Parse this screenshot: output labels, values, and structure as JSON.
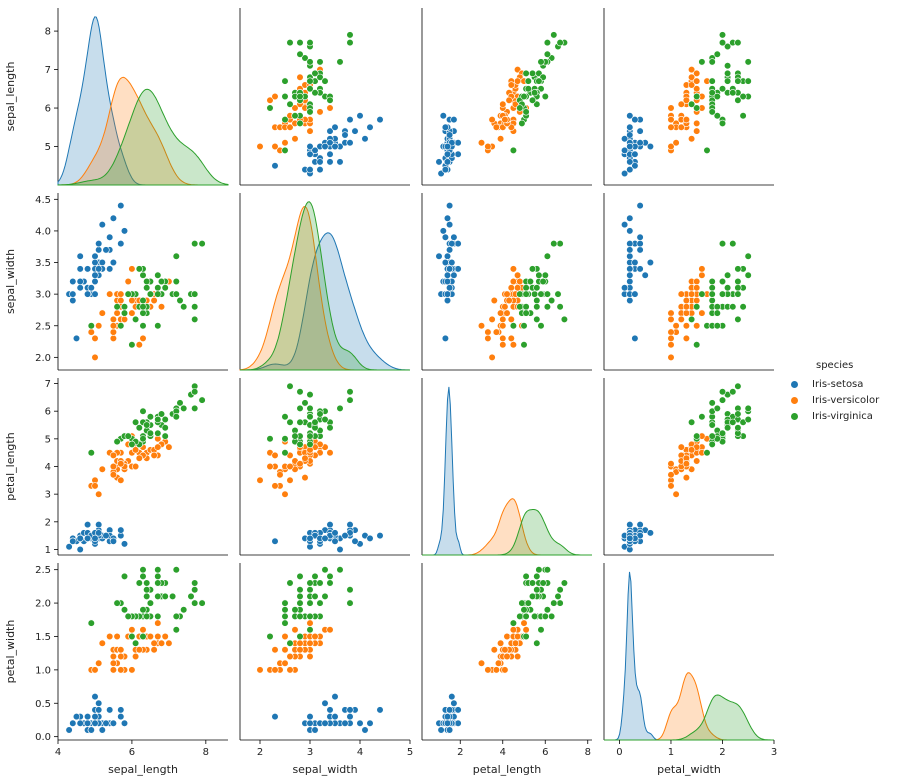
{
  "chart_data": {
    "type": "scatter",
    "title": "",
    "kind": "pairplot",
    "variables": [
      "sepal_length",
      "sepal_width",
      "petal_length",
      "petal_width"
    ],
    "axes": {
      "sepal_length": {
        "label": "sepal_length",
        "range": [
          4.0,
          8.6
        ],
        "ticks": [
          5,
          6,
          7,
          8
        ],
        "bottom_ticks": [
          4,
          6,
          8
        ]
      },
      "sepal_width": {
        "label": "sepal_width",
        "range": [
          1.8,
          4.6
        ],
        "ticks": [
          2.0,
          2.5,
          3.0,
          3.5,
          4.0,
          4.5
        ],
        "bottom_ticks": [
          2,
          3,
          4,
          5
        ],
        "bottom_range": [
          1.6,
          5.0
        ]
      },
      "petal_length": {
        "label": "petal_length",
        "range": [
          0.8,
          7.2
        ],
        "ticks": [
          1,
          2,
          3,
          4,
          5,
          6,
          7
        ],
        "bottom_ticks": [
          2,
          4,
          6,
          8
        ],
        "bottom_range": [
          0.2,
          8.2
        ]
      },
      "petal_width": {
        "label": "petal_width",
        "range": [
          -0.05,
          2.6
        ],
        "ticks": [
          0.0,
          0.5,
          1.0,
          1.5,
          2.0,
          2.5
        ],
        "bottom_ticks": [
          0,
          1,
          2,
          3
        ],
        "bottom_range": [
          -0.3,
          3.0
        ]
      }
    },
    "tick_labels": {
      "sepal_length": [
        "5",
        "6",
        "7",
        "8"
      ],
      "sepal_width": [
        "2.0",
        "2.5",
        "3.0",
        "3.5",
        "4.0",
        "4.5"
      ],
      "petal_length": [
        "1",
        "2",
        "3",
        "4",
        "5",
        "6",
        "7"
      ],
      "petal_width": [
        "0.0",
        "0.5",
        "1.0",
        "1.5",
        "2.0",
        "2.5"
      ],
      "bottom_sepal_length": [
        "4",
        "6",
        "8"
      ],
      "bottom_sepal_width": [
        "2",
        "3",
        "4",
        "5"
      ],
      "bottom_petal_length": [
        "2",
        "4",
        "6",
        "8"
      ],
      "bottom_petal_width": [
        "0",
        "1",
        "2",
        "3"
      ]
    },
    "legend": {
      "title": "species",
      "position": "right",
      "entries": [
        {
          "name": "Iris-setosa",
          "color": "#1f77b4"
        },
        {
          "name": "Iris-versicolor",
          "color": "#ff7f0e"
        },
        {
          "name": "Iris-virginica",
          "color": "#2ca02c"
        }
      ]
    },
    "series": [
      {
        "name": "Iris-setosa",
        "color": "#1f77b4",
        "sepal_length": [
          5.1,
          4.9,
          4.7,
          4.6,
          5.0,
          5.4,
          4.6,
          5.0,
          4.4,
          4.9,
          5.4,
          4.8,
          4.8,
          4.3,
          5.8,
          5.7,
          5.4,
          5.1,
          5.7,
          5.1,
          5.4,
          5.1,
          4.6,
          5.1,
          4.8,
          5.0,
          5.0,
          5.2,
          5.2,
          4.7,
          4.8,
          5.4,
          5.2,
          5.5,
          4.9,
          5.0,
          5.5,
          4.9,
          4.4,
          5.1,
          5.0,
          4.5,
          4.4,
          5.0,
          5.1,
          4.8,
          5.1,
          4.6,
          5.3,
          5.0
        ],
        "sepal_width": [
          3.5,
          3.0,
          3.2,
          3.1,
          3.6,
          3.9,
          3.4,
          3.4,
          2.9,
          3.1,
          3.7,
          3.4,
          3.0,
          3.0,
          4.0,
          4.4,
          3.9,
          3.5,
          3.8,
          3.8,
          3.4,
          3.7,
          3.6,
          3.3,
          3.4,
          3.0,
          3.4,
          3.5,
          3.4,
          3.2,
          3.1,
          3.4,
          4.1,
          4.2,
          3.1,
          3.2,
          3.5,
          3.1,
          3.0,
          3.4,
          3.5,
          2.3,
          3.2,
          3.5,
          3.8,
          3.0,
          3.8,
          3.2,
          3.7,
          3.3
        ],
        "petal_length": [
          1.4,
          1.4,
          1.3,
          1.5,
          1.4,
          1.7,
          1.4,
          1.5,
          1.4,
          1.5,
          1.5,
          1.6,
          1.4,
          1.1,
          1.2,
          1.5,
          1.3,
          1.4,
          1.7,
          1.5,
          1.7,
          1.5,
          1.0,
          1.7,
          1.9,
          1.6,
          1.6,
          1.5,
          1.4,
          1.6,
          1.6,
          1.5,
          1.5,
          1.4,
          1.5,
          1.2,
          1.3,
          1.5,
          1.3,
          1.5,
          1.3,
          1.3,
          1.3,
          1.6,
          1.9,
          1.4,
          1.6,
          1.4,
          1.5,
          1.4
        ],
        "petal_width": [
          0.2,
          0.2,
          0.2,
          0.2,
          0.2,
          0.4,
          0.3,
          0.2,
          0.2,
          0.1,
          0.2,
          0.2,
          0.1,
          0.1,
          0.2,
          0.4,
          0.4,
          0.3,
          0.3,
          0.3,
          0.2,
          0.4,
          0.2,
          0.5,
          0.2,
          0.2,
          0.4,
          0.2,
          0.2,
          0.2,
          0.2,
          0.4,
          0.1,
          0.2,
          0.1,
          0.2,
          0.2,
          0.1,
          0.2,
          0.2,
          0.3,
          0.3,
          0.2,
          0.6,
          0.4,
          0.3,
          0.2,
          0.2,
          0.2,
          0.2
        ]
      },
      {
        "name": "Iris-versicolor",
        "color": "#ff7f0e",
        "sepal_length": [
          7.0,
          6.4,
          6.9,
          5.5,
          6.5,
          5.7,
          6.3,
          4.9,
          6.6,
          5.2,
          5.0,
          5.9,
          6.0,
          6.1,
          5.6,
          6.7,
          5.6,
          5.8,
          6.2,
          5.6,
          5.9,
          6.1,
          6.3,
          6.1,
          6.4,
          6.6,
          6.8,
          6.7,
          6.0,
          5.7,
          5.5,
          5.5,
          5.8,
          6.0,
          5.4,
          6.0,
          6.7,
          6.3,
          5.6,
          5.5,
          5.5,
          6.1,
          5.8,
          5.0,
          5.6,
          5.7,
          5.7,
          6.2,
          5.1,
          5.7
        ],
        "sepal_width": [
          3.2,
          3.2,
          3.1,
          2.3,
          2.8,
          2.8,
          3.3,
          2.4,
          2.9,
          2.7,
          2.0,
          3.0,
          2.2,
          2.9,
          2.9,
          3.1,
          3.0,
          2.7,
          2.2,
          2.5,
          3.2,
          2.8,
          2.5,
          2.8,
          2.9,
          3.0,
          2.8,
          3.0,
          2.9,
          2.6,
          2.4,
          2.4,
          2.7,
          2.7,
          3.0,
          3.4,
          3.1,
          2.3,
          3.0,
          2.5,
          2.6,
          3.0,
          2.6,
          2.3,
          2.7,
          3.0,
          2.9,
          2.9,
          2.5,
          2.8
        ],
        "petal_length": [
          4.7,
          4.5,
          4.9,
          4.0,
          4.6,
          4.5,
          4.7,
          3.3,
          4.6,
          3.9,
          3.5,
          4.2,
          4.0,
          4.7,
          3.6,
          4.4,
          4.5,
          4.1,
          4.5,
          3.9,
          4.8,
          4.0,
          4.9,
          4.7,
          4.3,
          4.4,
          4.8,
          5.0,
          4.5,
          3.5,
          3.8,
          3.7,
          3.9,
          5.1,
          4.5,
          4.5,
          4.7,
          4.4,
          4.1,
          4.0,
          4.4,
          4.6,
          4.0,
          3.3,
          4.2,
          4.2,
          4.2,
          4.3,
          3.0,
          4.1
        ],
        "petal_width": [
          1.4,
          1.5,
          1.5,
          1.3,
          1.5,
          1.3,
          1.6,
          1.0,
          1.3,
          1.4,
          1.0,
          1.5,
          1.0,
          1.4,
          1.3,
          1.4,
          1.5,
          1.0,
          1.5,
          1.1,
          1.8,
          1.3,
          1.5,
          1.2,
          1.3,
          1.4,
          1.4,
          1.7,
          1.5,
          1.0,
          1.1,
          1.0,
          1.2,
          1.6,
          1.5,
          1.6,
          1.5,
          1.3,
          1.3,
          1.3,
          1.2,
          1.4,
          1.2,
          1.0,
          1.3,
          1.2,
          1.3,
          1.3,
          1.1,
          1.3
        ]
      },
      {
        "name": "Iris-virginica",
        "color": "#2ca02c",
        "sepal_length": [
          6.3,
          5.8,
          7.1,
          6.3,
          6.5,
          7.6,
          4.9,
          7.3,
          6.7,
          7.2,
          6.5,
          6.4,
          6.8,
          5.7,
          5.8,
          6.4,
          6.5,
          7.7,
          7.7,
          6.0,
          6.9,
          5.6,
          7.7,
          6.3,
          6.7,
          7.2,
          6.2,
          6.1,
          6.4,
          7.2,
          7.4,
          7.9,
          6.4,
          6.3,
          6.1,
          7.7,
          6.3,
          6.4,
          6.0,
          6.9,
          6.7,
          6.9,
          5.8,
          6.8,
          6.7,
          6.7,
          6.3,
          6.5,
          6.2,
          5.9
        ],
        "sepal_width": [
          3.3,
          2.7,
          3.0,
          2.9,
          3.0,
          3.0,
          2.5,
          2.9,
          2.5,
          3.6,
          3.2,
          2.7,
          3.0,
          2.5,
          2.8,
          3.2,
          3.0,
          3.8,
          2.6,
          2.2,
          3.2,
          2.8,
          2.8,
          2.7,
          3.3,
          3.2,
          2.8,
          3.0,
          2.8,
          3.0,
          2.8,
          3.8,
          2.8,
          2.8,
          2.6,
          3.0,
          3.4,
          3.1,
          3.0,
          3.1,
          3.1,
          3.1,
          2.7,
          3.2,
          3.3,
          3.0,
          2.5,
          3.0,
          3.4,
          3.0
        ],
        "petal_length": [
          6.0,
          5.1,
          5.9,
          5.6,
          5.8,
          6.6,
          4.5,
          6.3,
          5.8,
          6.1,
          5.1,
          5.3,
          5.5,
          5.0,
          5.1,
          5.3,
          5.5,
          6.7,
          6.9,
          5.0,
          5.7,
          4.9,
          6.7,
          4.9,
          5.7,
          6.0,
          4.8,
          4.9,
          5.6,
          5.8,
          6.1,
          6.4,
          5.6,
          5.1,
          5.6,
          6.1,
          5.6,
          5.5,
          4.8,
          5.4,
          5.6,
          5.1,
          5.1,
          5.9,
          5.7,
          5.2,
          5.0,
          5.2,
          5.4,
          5.1
        ],
        "petal_width": [
          2.5,
          1.9,
          2.1,
          1.8,
          2.2,
          2.1,
          1.7,
          1.8,
          1.8,
          2.5,
          2.0,
          1.9,
          2.1,
          2.0,
          2.4,
          2.3,
          1.8,
          2.2,
          2.3,
          1.5,
          2.3,
          2.0,
          2.0,
          1.8,
          2.1,
          1.8,
          1.8,
          1.8,
          2.1,
          1.6,
          1.9,
          2.0,
          2.2,
          1.5,
          1.4,
          2.3,
          2.4,
          1.8,
          1.8,
          2.1,
          2.4,
          2.3,
          1.9,
          2.3,
          2.5,
          2.3,
          1.9,
          2.0,
          2.3,
          1.8
        ]
      }
    ]
  }
}
